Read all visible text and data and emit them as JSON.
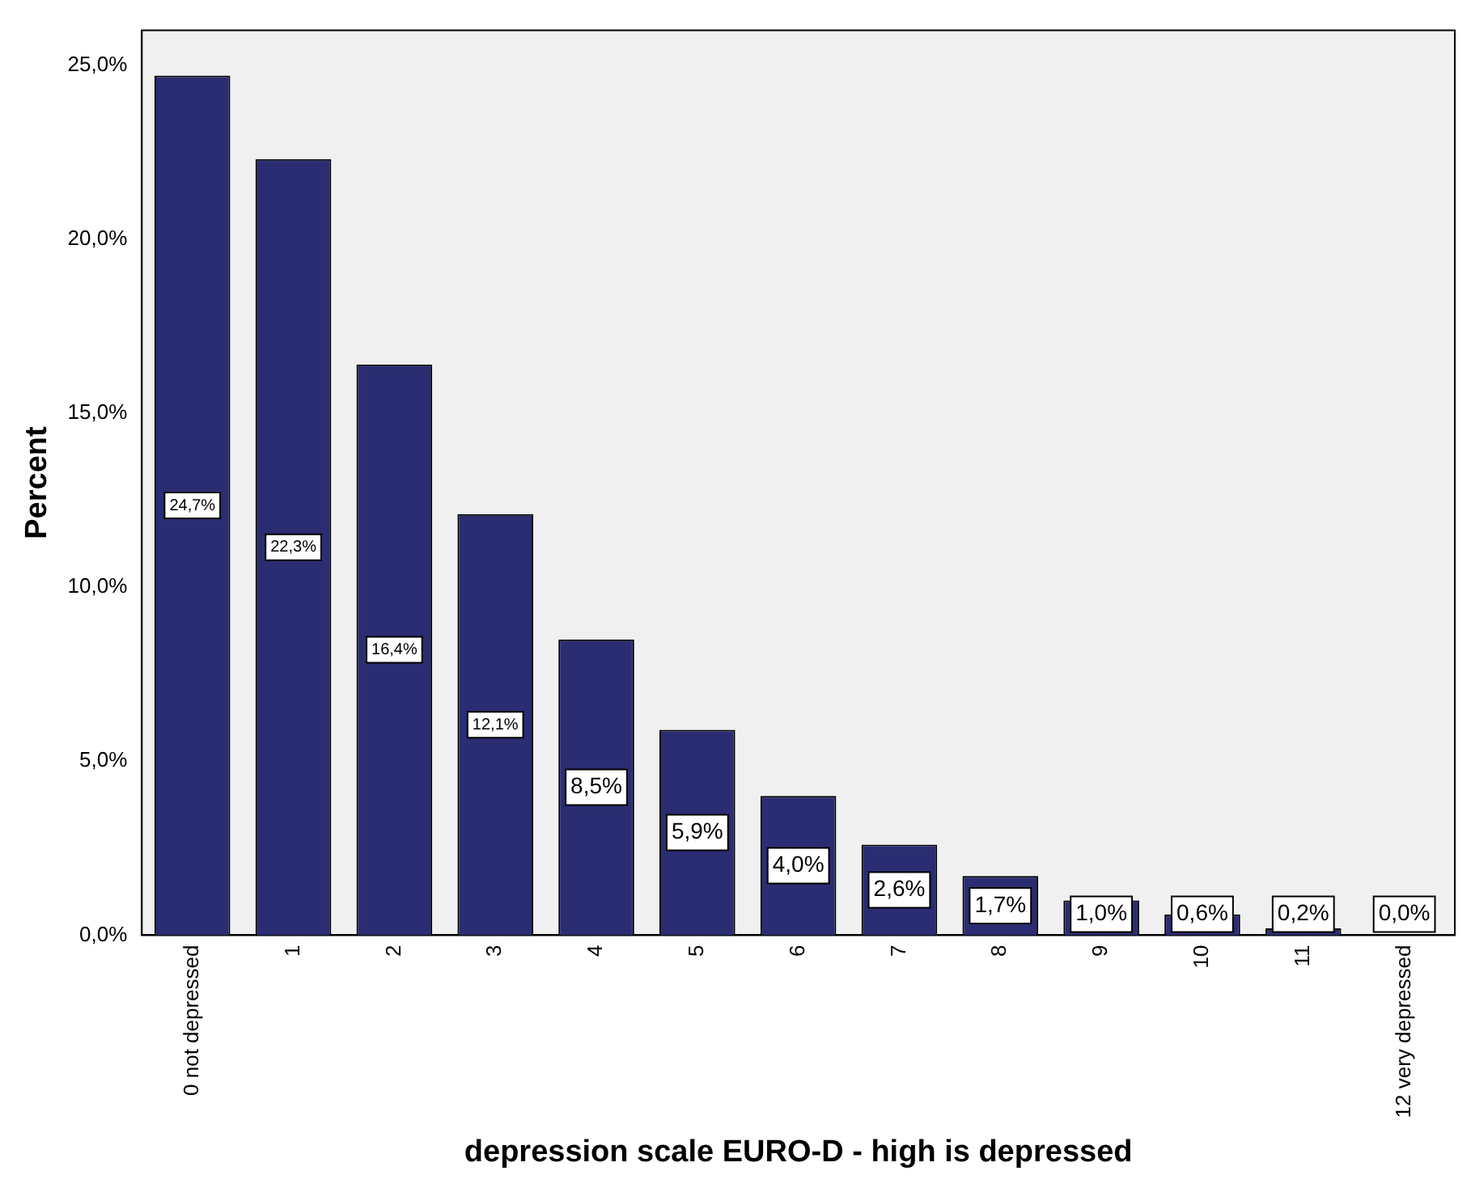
{
  "chart_data": {
    "type": "bar",
    "xlabel": "depression scale EURO-D - high is depressed",
    "ylabel": "Percent",
    "categories": [
      "0 not depressed",
      "1",
      "2",
      "3",
      "4",
      "5",
      "6",
      "7",
      "8",
      "9",
      "10",
      "11",
      "12 very depressed"
    ],
    "values": [
      24.7,
      22.3,
      16.4,
      12.1,
      8.5,
      5.9,
      4.0,
      2.6,
      1.7,
      1.0,
      0.6,
      0.2,
      0.0
    ],
    "value_labels": [
      "24,7%",
      "22,3%",
      "16,4%",
      "12,1%",
      "8,5%",
      "5,9%",
      "4,0%",
      "2,6%",
      "1,7%",
      "1,0%",
      "0,6%",
      "0,2%",
      "0,0%"
    ],
    "color": "#2b2d72",
    "ylim": [
      0,
      26
    ],
    "yticks": [
      {
        "value": 0,
        "label": "0,0%"
      },
      {
        "value": 5,
        "label": "5,0%"
      },
      {
        "value": 10,
        "label": "10,0%"
      },
      {
        "value": 15,
        "label": "15,0%"
      },
      {
        "value": 20,
        "label": "20,0%"
      },
      {
        "value": 25,
        "label": "25,0%"
      }
    ],
    "grid": false,
    "legend": false
  }
}
